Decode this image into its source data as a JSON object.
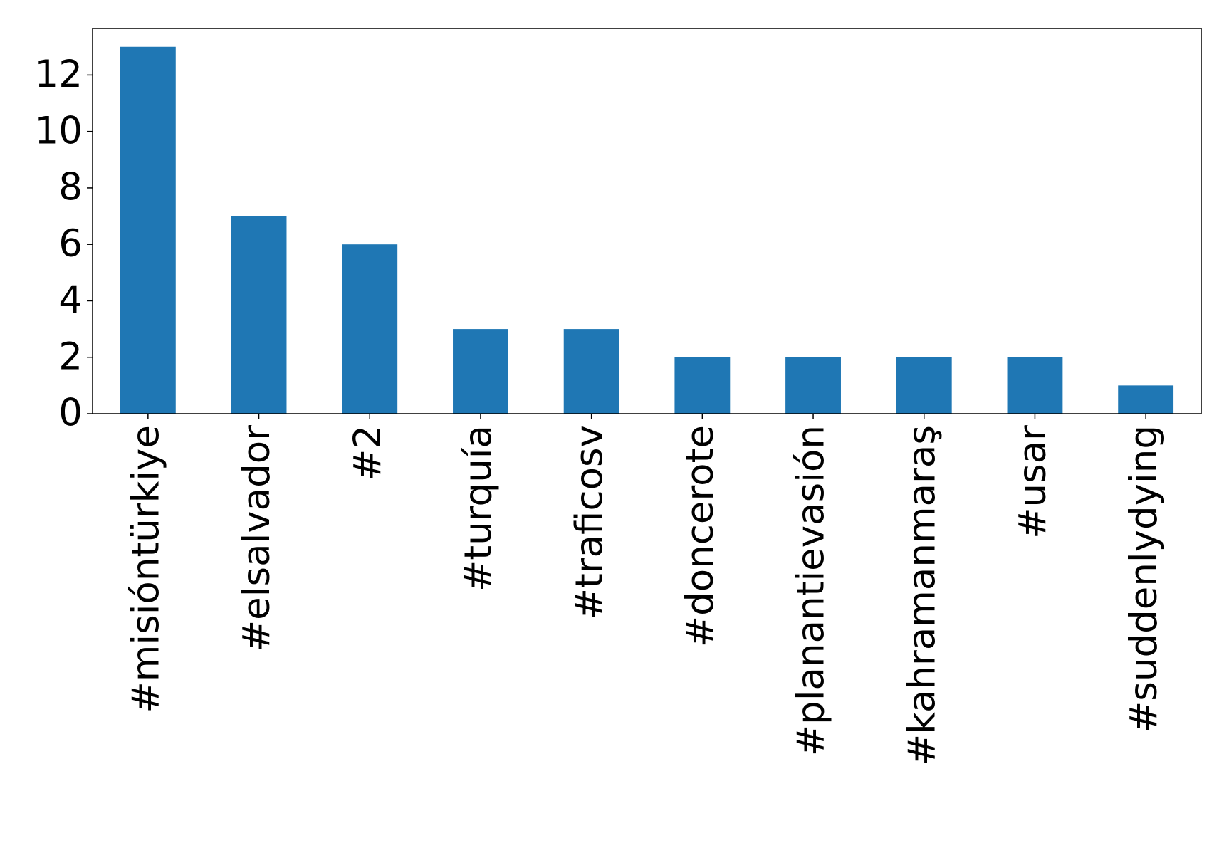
{
  "chart_data": {
    "type": "bar",
    "categories": [
      "#misióntürkiye",
      "#elsalvador",
      "#2",
      "#turquía",
      "#traficosv",
      "#doncerote",
      "#planantievasión",
      "#kahramanmaraş",
      "#usar",
      "#suddenlydying"
    ],
    "values": [
      13,
      7,
      6,
      3,
      3,
      2,
      2,
      2,
      2,
      1
    ],
    "color": "#1f77b4",
    "ylim": [
      0,
      13.65
    ],
    "yticks": [
      0,
      2,
      4,
      6,
      8,
      10,
      12
    ],
    "grid": false
  }
}
